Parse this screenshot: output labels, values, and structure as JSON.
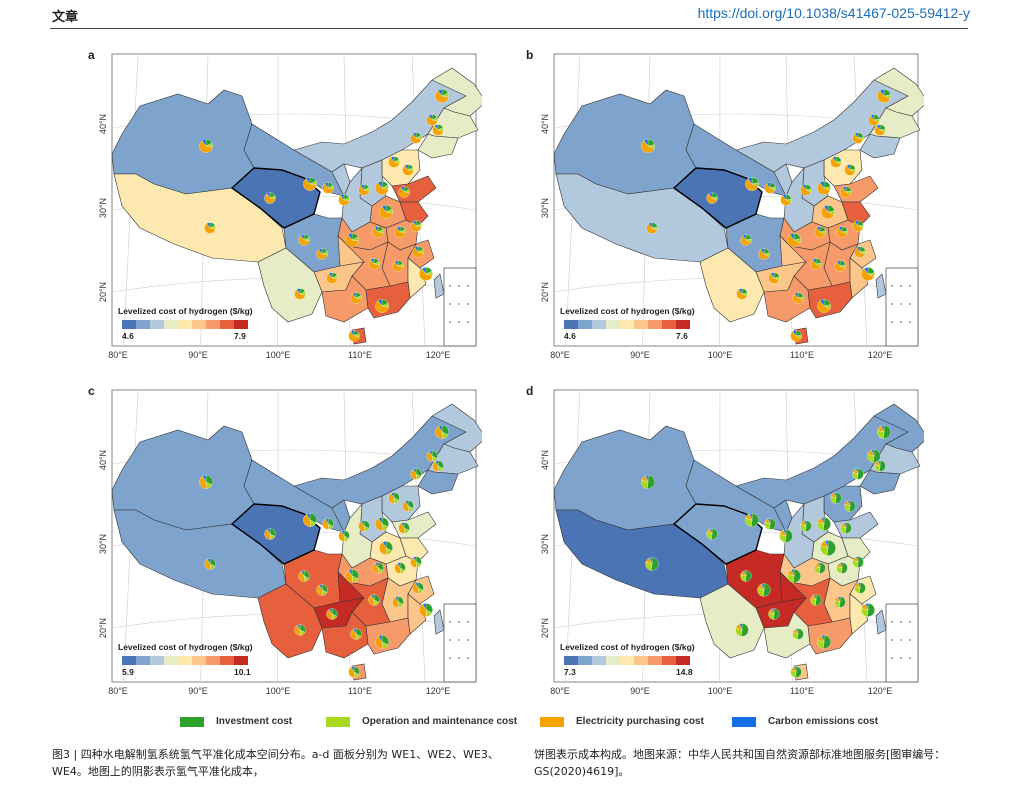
{
  "header": {
    "section": "文章",
    "doi": "https://doi.org/10.1038/s41467-025-59412-y"
  },
  "panels": [
    {
      "label": "a",
      "legend_title": "Levelized cost of hydrogen ($/kg)",
      "min": "4.6",
      "max": "7.9",
      "variant": 0
    },
    {
      "label": "b",
      "legend_title": "Levelized cost of hydrogen ($/kg)",
      "min": "4.6",
      "max": "7.6",
      "variant": 1
    },
    {
      "label": "c",
      "legend_title": "Levelized cost of hydrogen ($/kg)",
      "min": "5.9",
      "max": "10.1",
      "variant": 2
    },
    {
      "label": "d",
      "legend_title": "Levelized cost of hydrogen ($/kg)",
      "min": "7.3",
      "max": "14.8",
      "variant": 3
    }
  ],
  "axes": {
    "lon": [
      "80°E",
      "90°E",
      "100°E",
      "110°E",
      "120°E"
    ],
    "lat": [
      "40°N",
      "30°N",
      "20°N"
    ]
  },
  "legend": [
    {
      "label": "Investment cost",
      "color": "#2ea02e"
    },
    {
      "label": "Operation and maintenance cost",
      "color": "#a8d81c"
    },
    {
      "label": "Electricity purchasing cost",
      "color": "#f4a300"
    },
    {
      "label": "Carbon emissions cost",
      "color": "#1570e6"
    }
  ],
  "caption": {
    "left": "图3 | 四种水电解制氢系统氢气平准化成本空间分布。a-d 面板分别为 WE1、WE2、WE3、WE4。地图上的阴影表示氢气平准化成本，",
    "right": "饼图表示成本构成。地图来源：中华人民共和国自然资源部标准地图服务[图审编号：GS(2020)4619]。"
  },
  "colors": {
    "scale": [
      "#4a74b4",
      "#7ea3cc",
      "#b2c8dc",
      "#e6ecc6",
      "#fde8b0",
      "#fcc58a",
      "#f69a6a",
      "#e6603e",
      "#c52a24"
    ]
  }
}
